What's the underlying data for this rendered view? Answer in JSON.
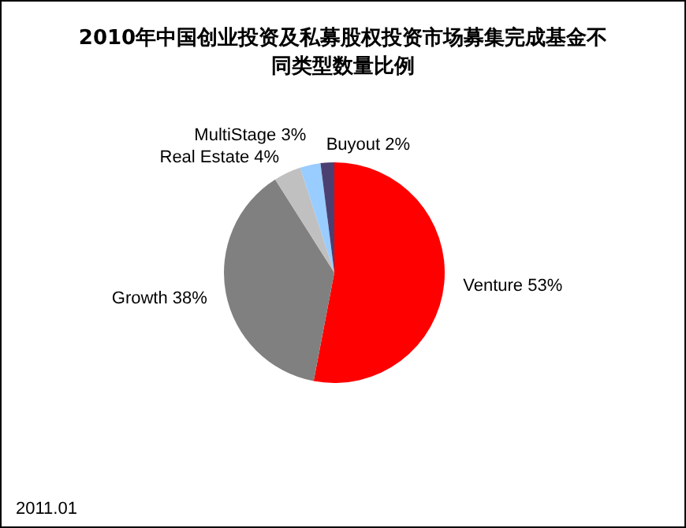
{
  "chart_data": {
    "type": "pie",
    "title": "2010年中国创业投资及私募股权投资市场募集完成基金不同类型数量比例",
    "categories": [
      "Venture",
      "Growth",
      "Real Estate",
      "MultiStage",
      "Buyout"
    ],
    "values": [
      53,
      38,
      4,
      3,
      2
    ],
    "value_labels": [
      "53%",
      "38%",
      "4%",
      "3%",
      "2%"
    ],
    "colors": [
      "#ff0000",
      "#808080",
      "#c0c0c0",
      "#99ccff",
      "#4b3f72"
    ],
    "annotations": [
      "2011.01"
    ]
  }
}
